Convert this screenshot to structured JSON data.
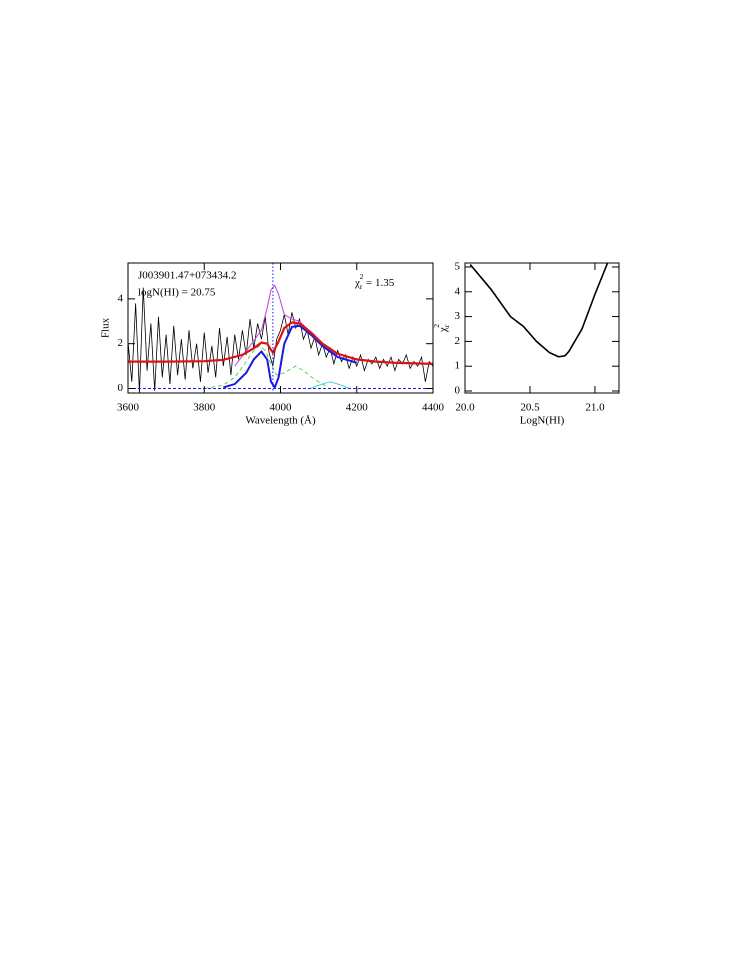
{
  "chart_data": [
    {
      "type": "line",
      "xlabel": "Wavelength (Å)",
      "ylabel": "Flux",
      "annotations": [
        "J003901.47+073434.2",
        "logN(HI) = 20.75"
      ],
      "annotation_colors": [
        "#000000",
        "#1a1aff"
      ],
      "chi_label": {
        "symbol": "χ",
        "subscript": "r",
        "superscript": "2",
        "text": " = 1.35",
        "color": "#1a1aff"
      },
      "xlim": [
        3600,
        4400
      ],
      "xticks": [
        3600,
        3800,
        4000,
        4200,
        4400
      ],
      "ylim": [
        -0.2,
        5.6
      ],
      "yticks": [
        0,
        2,
        4
      ],
      "vline": 3980,
      "vline_color": "#1a1aff",
      "hline": 0,
      "hline_color": "#1a1aff",
      "series": [
        {
          "color": "#000000",
          "width": 0.8,
          "dash": "none",
          "x": [
            3600,
            3610,
            3620,
            3630,
            3640,
            3650,
            3660,
            3670,
            3680,
            3690,
            3700,
            3710,
            3720,
            3730,
            3740,
            3750,
            3760,
            3770,
            3780,
            3790,
            3800,
            3810,
            3820,
            3830,
            3840,
            3850,
            3860,
            3870,
            3880,
            3890,
            3900,
            3910,
            3920,
            3930,
            3940,
            3950,
            3960,
            3970,
            3980,
            3990,
            4000,
            4010,
            4020,
            4030,
            4040,
            4050,
            4060,
            4070,
            4080,
            4090,
            4100,
            4110,
            4120,
            4130,
            4140,
            4150,
            4160,
            4170,
            4180,
            4190,
            4200,
            4210,
            4220,
            4230,
            4240,
            4250,
            4260,
            4270,
            4280,
            4290,
            4300,
            4310,
            4320,
            4330,
            4340,
            4350,
            4360,
            4370,
            4380,
            4390,
            4400
          ],
          "values": [
            2.1,
            0.3,
            3.8,
            -0.2,
            4.5,
            0.8,
            2.9,
            -0.1,
            3.2,
            0.5,
            2.4,
            0.2,
            2.8,
            0.6,
            2.2,
            0.4,
            2.6,
            0.9,
            2.0,
            0.3,
            2.5,
            0.7,
            1.9,
            0.5,
            2.7,
            1.0,
            2.3,
            0.6,
            2.4,
            1.3,
            2.6,
            1.5,
            3.1,
            1.8,
            2.9,
            2.2,
            3.2,
            1.6,
            1.0,
            2.2,
            2.6,
            3.3,
            2.4,
            3.4,
            2.7,
            3.1,
            2.2,
            2.6,
            1.8,
            2.3,
            1.5,
            2.0,
            1.4,
            1.8,
            1.1,
            1.7,
            1.2,
            1.5,
            0.9,
            1.4,
            1.0,
            1.5,
            0.8,
            1.3,
            1.1,
            1.4,
            0.9,
            1.3,
            1.0,
            1.4,
            0.8,
            1.3,
            1.1,
            1.5,
            0.9,
            1.2,
            1.0,
            1.4,
            0.3,
            1.2,
            1.0
          ]
        },
        {
          "color": "#2ecc2e",
          "width": 0.8,
          "dash": "4,3",
          "x": [
            3800,
            3850,
            3880,
            3910,
            3930,
            3945,
            3960,
            3975,
            3990,
            4010,
            4040,
            4060,
            4090,
            4120
          ],
          "values": [
            0.0,
            0.15,
            0.5,
            1.2,
            1.7,
            1.9,
            1.7,
            1.1,
            0.6,
            0.7,
            1.0,
            0.8,
            0.4,
            0.1
          ]
        },
        {
          "color": "#22cccc",
          "width": 0.8,
          "dash": "none",
          "x": [
            4080,
            4110,
            4130,
            4150,
            4180
          ],
          "values": [
            0.02,
            0.2,
            0.3,
            0.2,
            0.02
          ]
        },
        {
          "color": "#c040e0",
          "width": 1,
          "dash": "none",
          "x": [
            3880,
            3920,
            3950,
            3965,
            3975,
            3985,
            3995,
            4010,
            4030,
            4050,
            4080,
            4110,
            4150
          ],
          "values": [
            1.0,
            1.9,
            2.6,
            3.6,
            4.4,
            4.6,
            4.2,
            3.3,
            3.1,
            3.0,
            2.5,
            1.9,
            1.5
          ]
        },
        {
          "color": "#1a1ae6",
          "width": 2,
          "dash": "none",
          "x": [
            3850,
            3880,
            3910,
            3930,
            3950,
            3965,
            3975,
            3985,
            3995,
            4010,
            4030,
            4050,
            4080,
            4110,
            4150,
            4200
          ],
          "values": [
            0.05,
            0.2,
            0.7,
            1.3,
            1.65,
            1.3,
            0.3,
            0.05,
            0.5,
            2.0,
            2.75,
            2.8,
            2.4,
            1.9,
            1.4,
            1.15
          ]
        },
        {
          "color": "#e01010",
          "width": 2.2,
          "dash": "none",
          "x": [
            3600,
            3700,
            3800,
            3850,
            3900,
            3930,
            3950,
            3965,
            3980,
            3995,
            4010,
            4030,
            4050,
            4080,
            4110,
            4150,
            4200,
            4250,
            4300,
            4400
          ],
          "values": [
            1.2,
            1.2,
            1.22,
            1.28,
            1.5,
            1.8,
            2.05,
            2.0,
            1.6,
            2.1,
            2.7,
            2.95,
            2.9,
            2.5,
            2.0,
            1.55,
            1.3,
            1.2,
            1.15,
            1.1
          ]
        }
      ]
    },
    {
      "type": "line",
      "xlabel": "LogN(HI)",
      "ylabel": {
        "symbol": "χ",
        "subscript": "r",
        "superscript": "2"
      },
      "xlim": [
        20.0,
        21.185
      ],
      "xticks": [
        {
          "value": 20,
          "label": "20.0"
        },
        20.5,
        {
          "value": 21,
          "label": "21.0"
        }
      ],
      "ylim": [
        -0.08,
        5.16
      ],
      "yticks": [
        0,
        1,
        2,
        3,
        4,
        5
      ],
      "series": [
        {
          "color": "#000000",
          "width": 1.6,
          "dash": "none",
          "x": [
            20.04,
            20.2,
            20.35,
            20.45,
            20.55,
            20.65,
            20.72,
            20.77,
            20.8,
            20.9,
            21.0,
            21.1
          ],
          "values": [
            5.1,
            4.1,
            3.0,
            2.6,
            2.0,
            1.55,
            1.38,
            1.42,
            1.6,
            2.5,
            3.9,
            5.2
          ]
        }
      ]
    }
  ]
}
